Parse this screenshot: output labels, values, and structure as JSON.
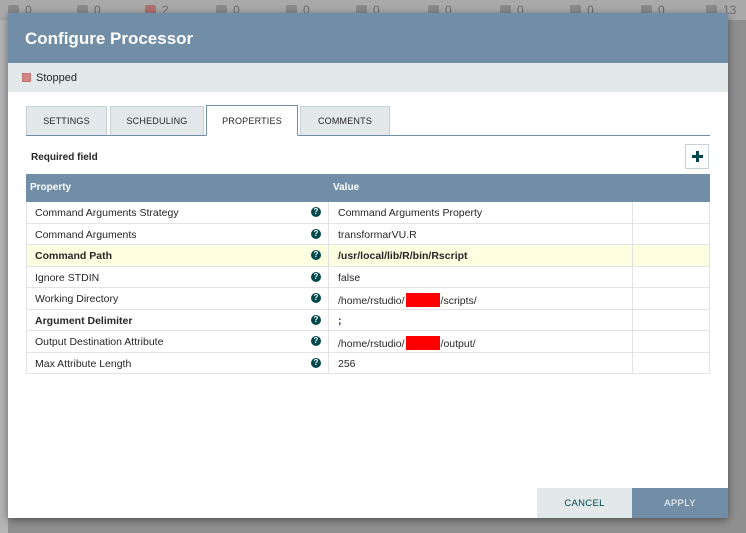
{
  "background_bar": {
    "counts": [
      "0",
      "0",
      "2",
      "0",
      "0",
      "0",
      "0",
      "0",
      "0",
      "0",
      "13"
    ]
  },
  "dialog": {
    "title": "Configure Processor",
    "status": "Stopped",
    "tabs": [
      {
        "label": "SETTINGS"
      },
      {
        "label": "SCHEDULING"
      },
      {
        "label": "PROPERTIES",
        "active": true
      },
      {
        "label": "COMMENTS"
      }
    ],
    "required_field_label": "Required field",
    "table": {
      "headers": {
        "property": "Property",
        "value": "Value"
      },
      "rows": [
        {
          "property": "Command Arguments Strategy",
          "value": "Command Arguments Property",
          "required": false
        },
        {
          "property": "Command Arguments",
          "value": "transformarVU.R",
          "required": false
        },
        {
          "property": "Command Path",
          "value": "/usr/local/lib/R/bin/Rscript",
          "required": true
        },
        {
          "property": "Ignore STDIN",
          "value": "false",
          "required": false
        },
        {
          "property": "Working Directory",
          "value_prefix": "/home/rstudio/",
          "value_suffix": "/scripts/",
          "required": false
        },
        {
          "property": "Argument Delimiter",
          "value": ";",
          "required": true
        },
        {
          "property": "Output Destination Attribute",
          "value_prefix": "/home/rstudio/",
          "value_suffix": "/output/",
          "required": false
        },
        {
          "property": "Max Attribute Length",
          "value": "256",
          "required": false
        }
      ]
    },
    "buttons": {
      "cancel": "CANCEL",
      "apply": "APPLY"
    },
    "colors": {
      "header": "#728ea7",
      "accent": "#004849",
      "stopped": "#d18686",
      "redaction": "#ff0000"
    }
  }
}
